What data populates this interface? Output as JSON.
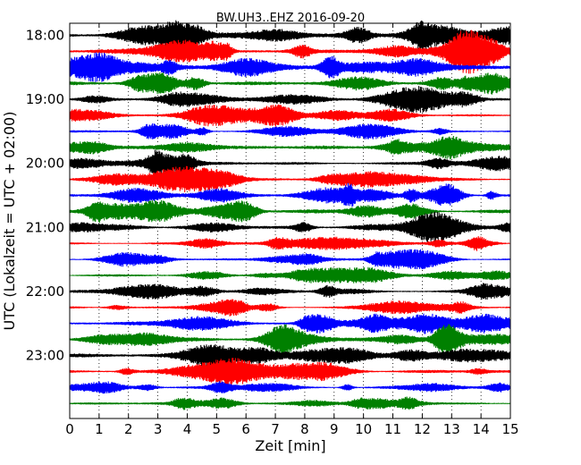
{
  "chart_data": {
    "type": "line",
    "title": "BW.UH3..EHZ 2016-09-20",
    "xlabel": "Zeit  [min]",
    "ylabel": "UTC (Lokalzeit = UTC + 02:00)",
    "xlim": [
      0,
      15
    ],
    "x_ticks": [
      "0",
      "1",
      "2",
      "3",
      "4",
      "5",
      "6",
      "7",
      "8",
      "9",
      "10",
      "11",
      "12",
      "13",
      "14",
      "15"
    ],
    "y_ticks": [
      "18:00",
      "19:00",
      "20:00",
      "21:00",
      "22:00",
      "23:00"
    ],
    "grid": "vertical dotted at each minute",
    "traces": [
      {
        "start": "18:00",
        "color": "#000000",
        "amp": 3.5
      },
      {
        "start": "18:15",
        "color": "#ff0000",
        "amp": 3.5
      },
      {
        "start": "18:30",
        "color": "#0000ff",
        "amp": 3.5
      },
      {
        "start": "18:45",
        "color": "#008000",
        "amp": 2.5
      },
      {
        "start": "19:00",
        "color": "#000000",
        "amp": 2.2
      },
      {
        "start": "19:15",
        "color": "#ff0000",
        "amp": 2.2
      },
      {
        "start": "19:30",
        "color": "#0000ff",
        "amp": 2.0
      },
      {
        "start": "19:45",
        "color": "#008000",
        "amp": 2.5
      },
      {
        "start": "20:00",
        "color": "#000000",
        "amp": 2.2
      },
      {
        "start": "20:15",
        "color": "#ff0000",
        "amp": 2.2
      },
      {
        "start": "20:30",
        "color": "#0000ff",
        "amp": 2.5
      },
      {
        "start": "20:45",
        "color": "#008000",
        "amp": 2.5
      },
      {
        "start": "21:00",
        "color": "#000000",
        "amp": 2.0
      },
      {
        "start": "21:15",
        "color": "#ff0000",
        "amp": 1.8
      },
      {
        "start": "21:30",
        "color": "#0000ff",
        "amp": 1.8
      },
      {
        "start": "21:45",
        "color": "#008000",
        "amp": 1.6
      },
      {
        "start": "22:00",
        "color": "#000000",
        "amp": 2.0
      },
      {
        "start": "22:15",
        "color": "#ff0000",
        "amp": 1.8
      },
      {
        "start": "22:30",
        "color": "#0000ff",
        "amp": 3.0
      },
      {
        "start": "22:45",
        "color": "#008000",
        "amp": 3.0
      },
      {
        "start": "23:00",
        "color": "#000000",
        "amp": 2.5
      },
      {
        "start": "23:15",
        "color": "#ff0000",
        "amp": 2.2
      },
      {
        "start": "23:30",
        "color": "#0000ff",
        "amp": 1.8
      },
      {
        "start": "23:45",
        "color": "#008000",
        "amp": 2.0
      }
    ]
  }
}
